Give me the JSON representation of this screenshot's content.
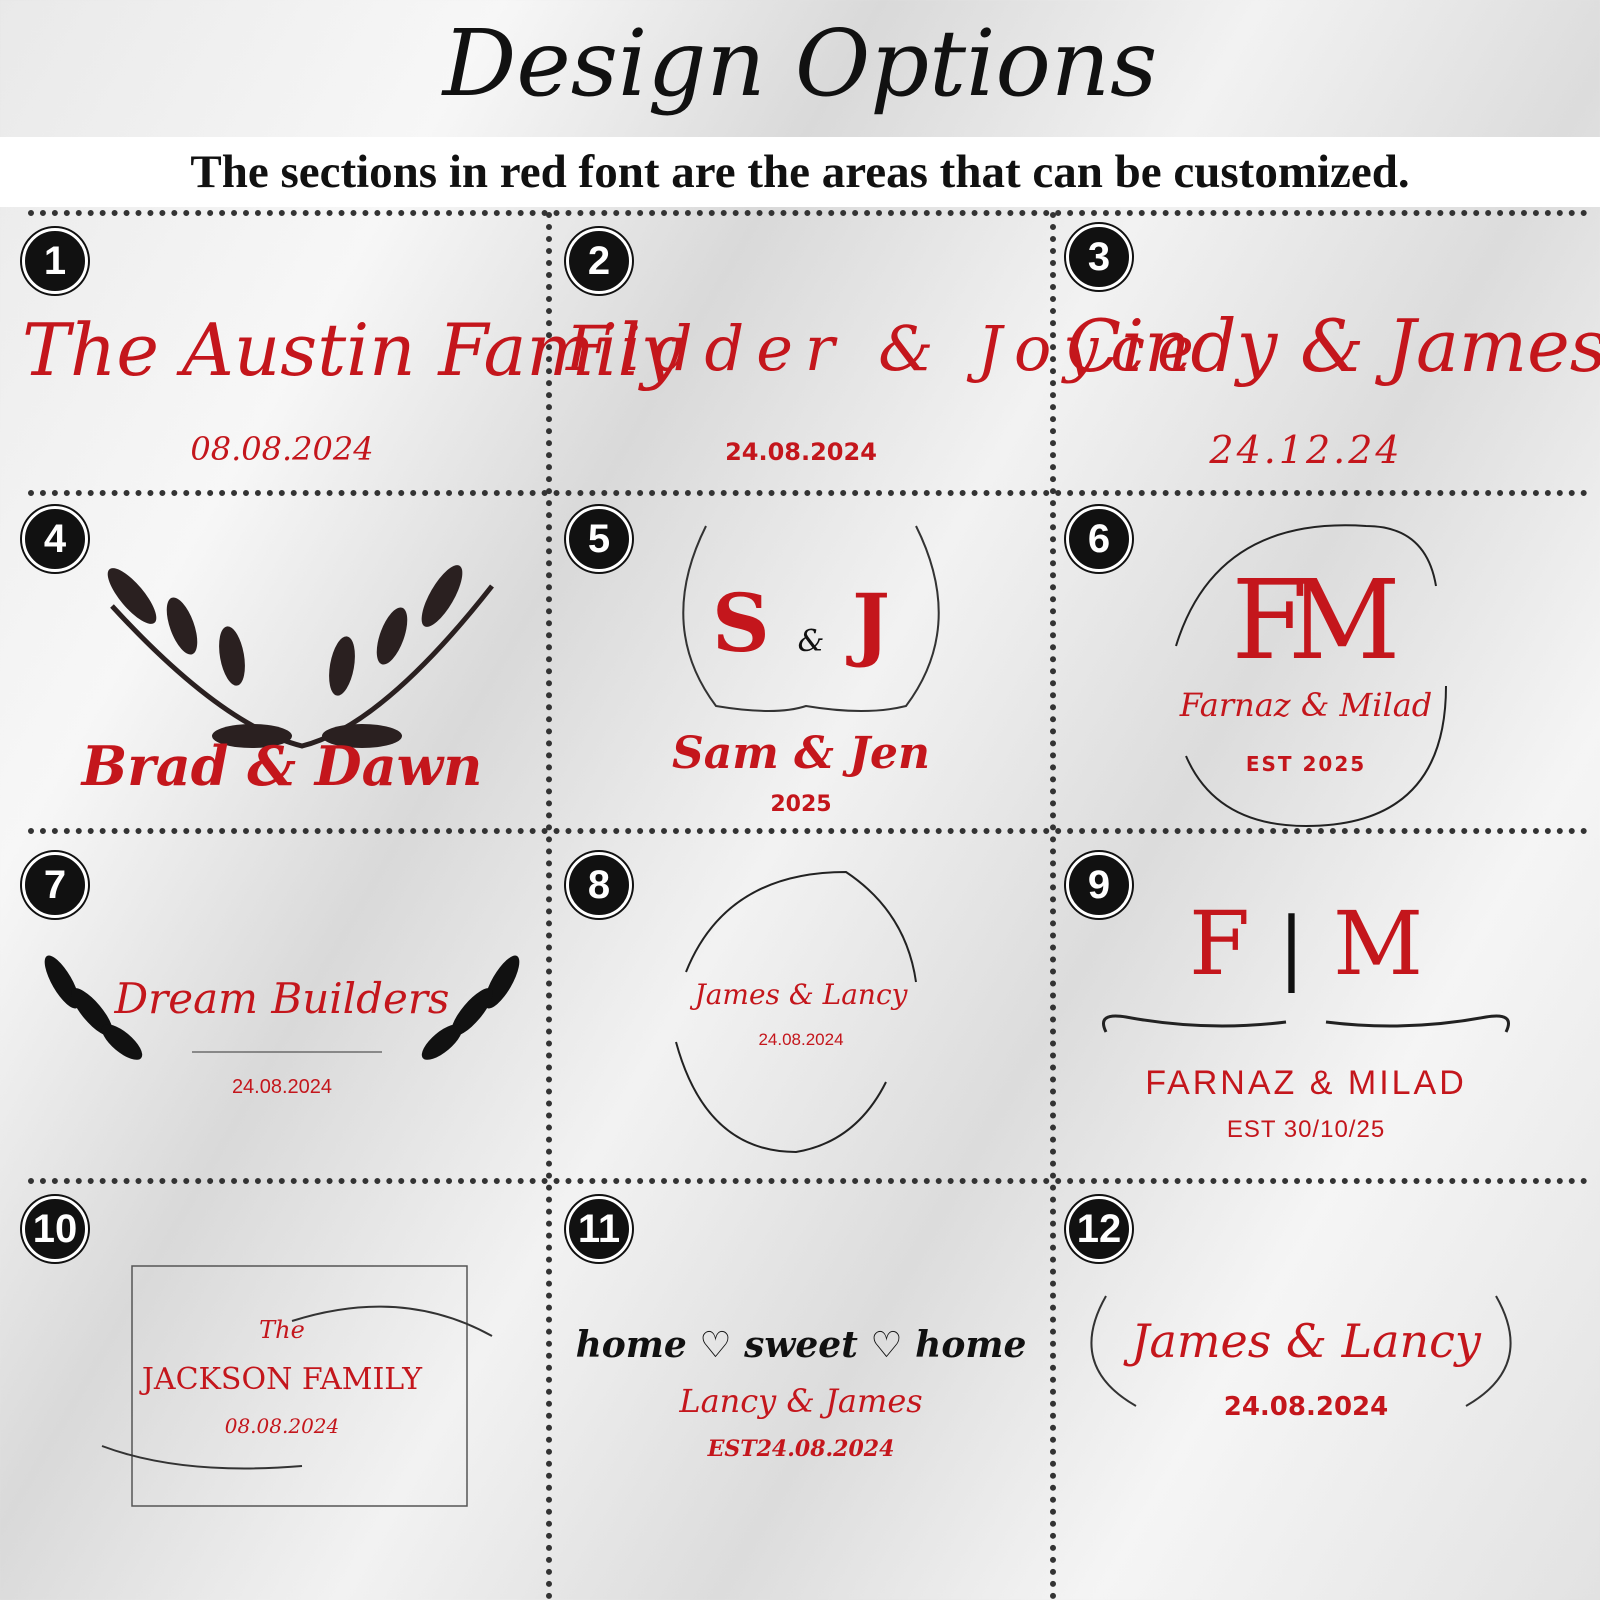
{
  "title": "Design Options",
  "subtitle": "The sections in red font are the areas that can be customized.",
  "colors": {
    "accent": "#c4161c",
    "text": "#111111"
  },
  "designs": [
    {
      "number": "1",
      "name": "The Austin Family",
      "date": "08.08.2024"
    },
    {
      "number": "2",
      "name": "Fidder & Joyce",
      "date": "24.08.2024"
    },
    {
      "number": "3",
      "name": "Cindy & James",
      "date": "24.12.24"
    },
    {
      "number": "4",
      "name": "Brad & Dawn",
      "decoration": "leaf-branches-icon"
    },
    {
      "number": "5",
      "monogram_left": "S",
      "monogram_amp": "&",
      "monogram_right": "J",
      "name": "Sam & Jen",
      "date": "2025",
      "decoration": "laurel-wreath-icon"
    },
    {
      "number": "6",
      "monogram": "FM",
      "name": "Farnaz & Milad",
      "date": "EST 2025",
      "decoration": "circular-vine-icon"
    },
    {
      "number": "7",
      "name": "Dream Builders",
      "date": "24.08.2024",
      "decoration": "leaf-branches-icon"
    },
    {
      "number": "8",
      "name": "James & Lancy",
      "date": "24.08.2024",
      "decoration": "floral-wreath-icon"
    },
    {
      "number": "9",
      "monogram_left": "F",
      "monogram_right": "M",
      "name": "FARNAZ & MILAD",
      "date": "EST 30/10/25",
      "decoration": "flourish-divider-icon"
    },
    {
      "number": "10",
      "line1": "The",
      "name": "JACKSON FAMILY",
      "date": "08.08.2024",
      "decoration": "floral-frame-icon"
    },
    {
      "number": "11",
      "tagline": "home ♡ sweet ♡ home",
      "name": "Lancy & James",
      "date": "EST24.08.2024"
    },
    {
      "number": "12",
      "name": "James & Lancy",
      "date": "24.08.2024",
      "decoration": "laurel-branches-icon"
    }
  ]
}
